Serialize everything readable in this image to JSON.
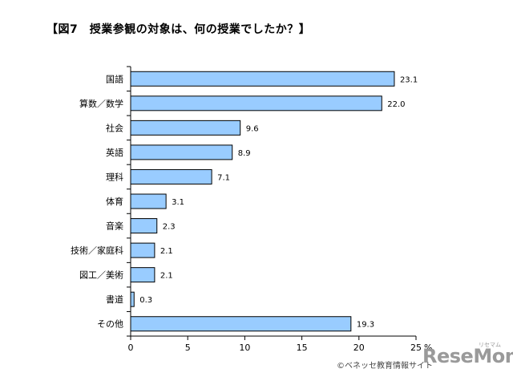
{
  "title": "【図7　授業参観の対象は、何の授業でしたか？】",
  "credit": "©ベネッセ教育情報サイト",
  "watermark": "ReseMom",
  "watermark_sub": "リセマム",
  "colors": {
    "bar_fill": "#99ccff",
    "bar_stroke": "#000000"
  },
  "chart_data": {
    "type": "bar",
    "orientation": "horizontal",
    "categories": [
      "国語",
      "算数／数学",
      "社会",
      "英語",
      "理科",
      "体育",
      "音楽",
      "技術／家庭科",
      "図工／美術",
      "書道",
      "その他"
    ],
    "values": [
      23.1,
      22.0,
      9.6,
      8.9,
      7.1,
      3.1,
      2.3,
      2.1,
      2.1,
      0.3,
      19.3
    ],
    "value_labels": [
      "23.1",
      "22.0",
      "9.6",
      "8.9",
      "7.1",
      "3.1",
      "2.3",
      "2.1",
      "2.1",
      "0.3",
      "19.3"
    ],
    "xlim": [
      0,
      25
    ],
    "xticks": [
      "0",
      "5",
      "10",
      "15",
      "20",
      "25"
    ],
    "xunit": "%",
    "grid": false,
    "legend": "none"
  }
}
